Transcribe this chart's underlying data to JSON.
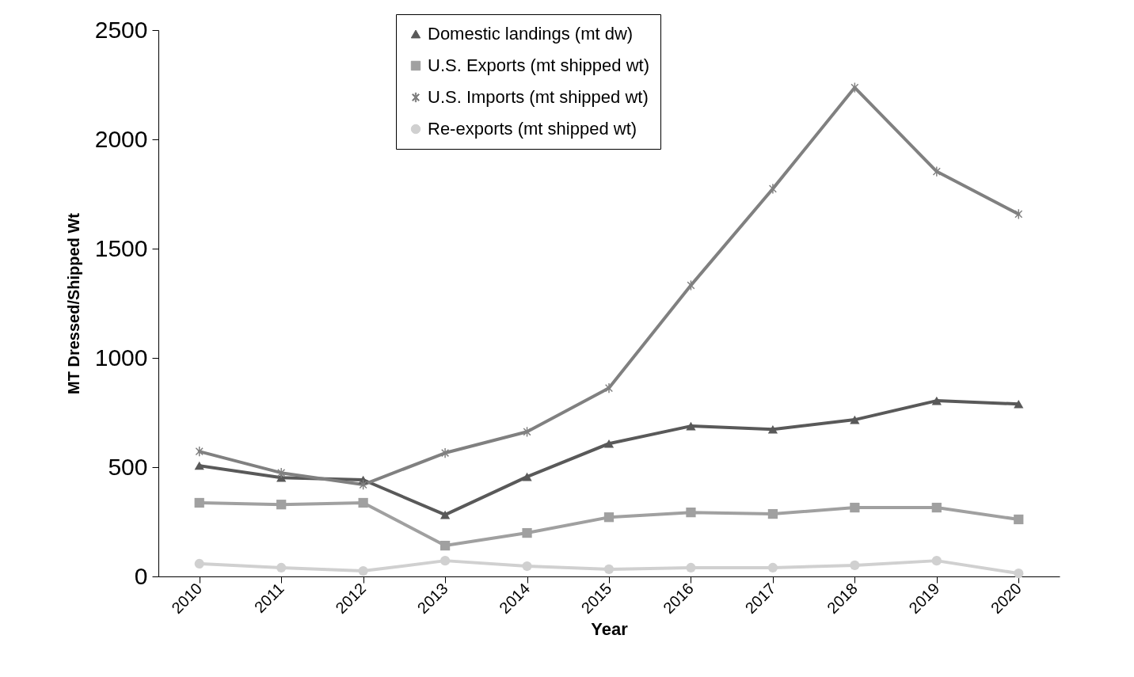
{
  "chart_data": {
    "type": "line",
    "xlabel": "Year",
    "ylabel": "MT Dressed/Shipped Wt",
    "categories": [
      "2010",
      "2011",
      "2012",
      "2013",
      "2014",
      "2015",
      "2016",
      "2017",
      "2018",
      "2019",
      "2020"
    ],
    "series": [
      {
        "name": "Domestic landings (mt dw)",
        "color": "#595959",
        "marker": "triangle",
        "values": [
          507,
          452,
          442,
          282,
          456,
          608,
          688,
          673,
          717,
          804,
          789
        ]
      },
      {
        "name": "U.S. Exports (mt shipped wt)",
        "color": "#a0a0a0",
        "marker": "square",
        "values": [
          337,
          329,
          337,
          141,
          199,
          271,
          293,
          286,
          315,
          315,
          261
        ]
      },
      {
        "name": "U.S. Imports (mt shipped wt)",
        "color": "#808080",
        "marker": "cross",
        "values": [
          572,
          474,
          420,
          565,
          662,
          862,
          1332,
          1774,
          2237,
          1853,
          1658
        ]
      },
      {
        "name": "Re-exports (mt shipped wt)",
        "color": "#d0d0d0",
        "marker": "circle",
        "values": [
          58,
          40,
          25,
          72,
          47,
          33,
          40,
          40,
          51,
          72,
          14
        ]
      }
    ],
    "ylim": [
      0,
      2500
    ],
    "yticks": [
      0,
      500,
      1000,
      1500,
      2000,
      2500
    ],
    "grid": false,
    "legend": "top",
    "line_style": "solid"
  }
}
